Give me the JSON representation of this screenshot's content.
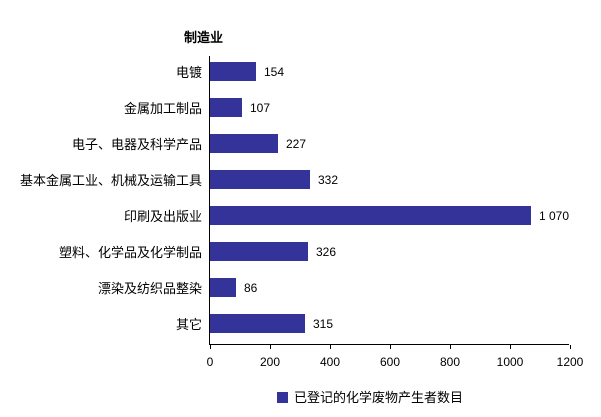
{
  "chart_data": {
    "type": "bar",
    "orientation": "horizontal",
    "title": "制造业",
    "categories": [
      "电镀",
      "金属加工制品",
      "电子、电器及科学产品",
      "基本金属工业、机械及运输工具",
      "印刷及出版业",
      "塑料、化学品及化学制品",
      "漂染及纺织品整染",
      "其它"
    ],
    "values": [
      154,
      107,
      227,
      332,
      1070,
      326,
      86,
      315
    ],
    "value_labels": [
      "154",
      "107",
      "227",
      "332",
      "1 070",
      "326",
      "86",
      "315"
    ],
    "xlabel": "",
    "ylabel": "",
    "xlim": [
      0,
      1200
    ],
    "x_ticks": [
      0,
      200,
      400,
      600,
      800,
      1000,
      1200
    ],
    "grid": false,
    "legend": "已登记的化学废物产生者数目",
    "legend_position": "bottom",
    "bar_color": "#333399",
    "axis_color": "#000000",
    "background_color": "#ffffff"
  }
}
